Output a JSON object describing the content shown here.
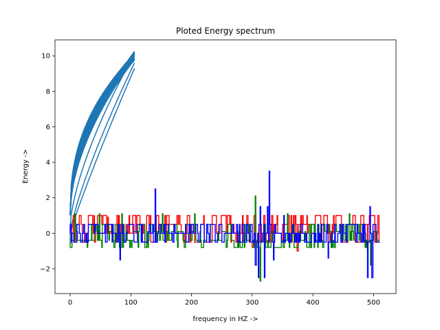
{
  "chart_data": {
    "type": "line",
    "title": "Ploted Energy spectrum",
    "xlabel": "frequency in HZ ->",
    "ylabel": "Energy ->",
    "xlim": [
      -25,
      537
    ],
    "ylim": [
      -3.4,
      10.9
    ],
    "xticks": [
      0,
      100,
      200,
      300,
      400,
      500
    ],
    "yticks": [
      -2,
      0,
      2,
      4,
      6,
      8,
      10
    ],
    "xtick_labels": [
      "0",
      "100",
      "200",
      "300",
      "400",
      "500"
    ],
    "ytick_labels": [
      "−2",
      "0",
      "2",
      "4",
      "6",
      "8",
      "10"
    ],
    "grid": false,
    "legend": false,
    "series": [
      {
        "color": "#1f77b4",
        "style": "curve-bundle",
        "x_range": [
          0,
          106
        ],
        "peak": [
          106,
          10.25
        ],
        "strands": [
          {
            "x0": 0,
            "y0": 1.0,
            "y_at_end": 10.25
          },
          {
            "x0": 0,
            "y0": 0.4,
            "y_at_end": 10.1
          },
          {
            "x0": 0,
            "y0": 0.0,
            "y_at_end": 9.6
          },
          {
            "x0": 2,
            "y0": 0.2,
            "y_at_end": 9.3
          }
        ]
      },
      {
        "color": "#ff0000",
        "style": "step-noise",
        "x_range": [
          0,
          510
        ],
        "levels": [
          -0.5,
          0.0,
          0.5,
          1.0
        ],
        "spikes": [
          {
            "x": 5,
            "y": 1.0
          },
          {
            "x": 45,
            "y": 1.0
          },
          {
            "x": 50,
            "y": 1.0
          },
          {
            "x": 55,
            "y": 1.0
          },
          {
            "x": 62,
            "y": 0.9
          },
          {
            "x": 80,
            "y": 1.0
          },
          {
            "x": 110,
            "y": 1.0
          },
          {
            "x": 160,
            "y": 1.0
          },
          {
            "x": 180,
            "y": 1.0
          },
          {
            "x": 238,
            "y": 1.0
          },
          {
            "x": 300,
            "y": -0.8
          },
          {
            "x": 374,
            "y": -1.0
          }
        ]
      },
      {
        "color": "#008000",
        "style": "step-noise",
        "x_range": [
          0,
          510
        ],
        "levels": [
          -0.8,
          -0.4,
          0.1,
          0.5,
          1.1
        ],
        "spikes": [
          {
            "x": 8,
            "y": 1.1
          },
          {
            "x": 48,
            "y": 1.1
          },
          {
            "x": 85,
            "y": 1.1
          },
          {
            "x": 152,
            "y": 1.1
          },
          {
            "x": 205,
            "y": 1.1
          },
          {
            "x": 305,
            "y": 2.1
          },
          {
            "x": 313,
            "y": -2.7
          },
          {
            "x": 358,
            "y": 1.1
          },
          {
            "x": 460,
            "y": 1.1
          },
          {
            "x": 495,
            "y": -1.8
          }
        ]
      },
      {
        "color": "#0000ff",
        "style": "step-noise",
        "x_range": [
          0,
          510
        ],
        "levels": [
          -0.5,
          0.0,
          0.5
        ],
        "spikes": [
          {
            "x": 82,
            "y": -1.5
          },
          {
            "x": 140,
            "y": 2.5
          },
          {
            "x": 305,
            "y": -1.8
          },
          {
            "x": 310,
            "y": -2.5
          },
          {
            "x": 313,
            "y": 1.5
          },
          {
            "x": 320,
            "y": -2.5
          },
          {
            "x": 325,
            "y": 1.5
          },
          {
            "x": 328,
            "y": 3.5
          },
          {
            "x": 335,
            "y": -1.5
          },
          {
            "x": 352,
            "y": 1.0
          },
          {
            "x": 425,
            "y": -1.4
          },
          {
            "x": 490,
            "y": -2.5
          },
          {
            "x": 494,
            "y": 1.5
          },
          {
            "x": 497,
            "y": -2.5
          }
        ]
      }
    ]
  }
}
